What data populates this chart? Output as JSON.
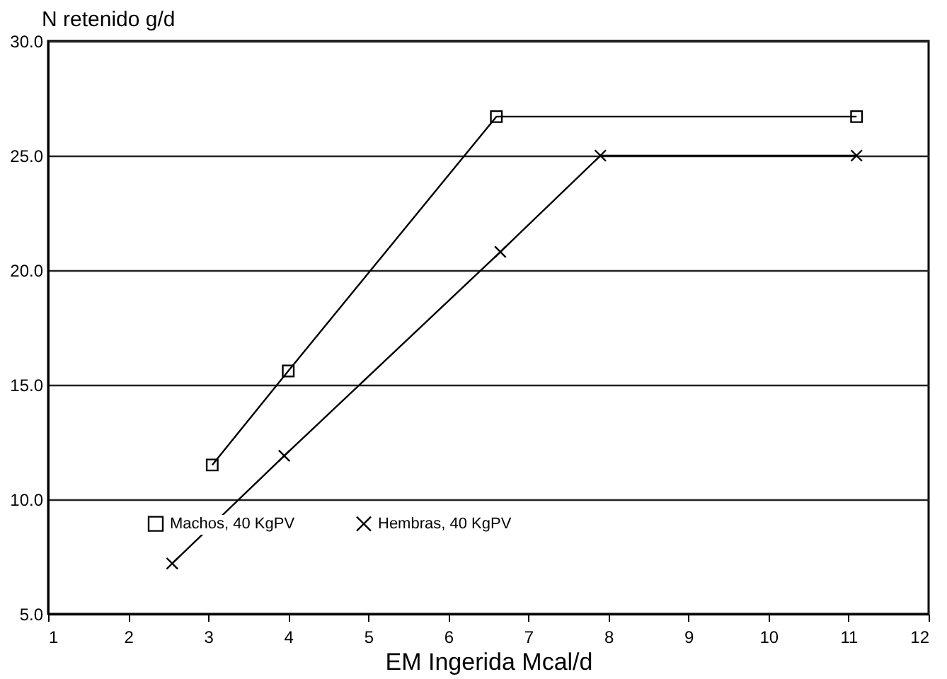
{
  "chart_data": {
    "type": "line",
    "xlabel": "EM Ingerida Mcal/d",
    "ylabel": "N retenido g/d",
    "series": [
      {
        "name": "Machos, 40 KgPV",
        "color": "#000000",
        "marker": "square",
        "x": [
          3.05,
          4.0,
          6.6,
          11.1
        ],
        "values": [
          11.5,
          15.6,
          26.7,
          26.7
        ]
      },
      {
        "name": "Hembras, 40 KgPV",
        "color": "#000000",
        "marker": "cross",
        "x": [
          2.55,
          3.95,
          6.65,
          7.9,
          11.1
        ],
        "values": [
          7.2,
          11.9,
          20.8,
          25.0,
          25.0
        ]
      }
    ],
    "xlim": [
      1,
      12
    ],
    "xticks": [
      1,
      2,
      3,
      4,
      5,
      6,
      7,
      8,
      9,
      10,
      11,
      12
    ],
    "ylim": [
      5,
      30
    ],
    "yticks": [
      {
        "value": 5,
        "label": "5.0"
      },
      {
        "value": 10,
        "label": "10.0"
      },
      {
        "value": 15,
        "label": "15.0"
      },
      {
        "value": 20,
        "label": "20.0"
      },
      {
        "value": 25,
        "label": "25.0"
      },
      {
        "value": 30,
        "label": "30.0"
      }
    ],
    "grid": "y",
    "legend": "bottom",
    "line_style": "solid"
  }
}
